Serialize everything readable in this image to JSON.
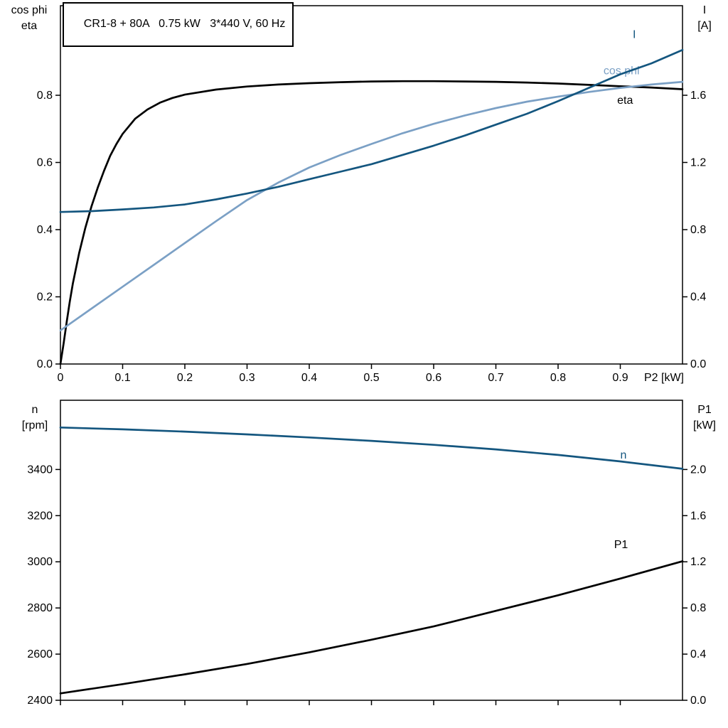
{
  "colors": {
    "black": "#000000",
    "dark_blue": "#14567F",
    "light_blue": "#7BA0C5"
  },
  "chart_data": [
    {
      "type": "line",
      "id": "top",
      "title": "CR1-8 + 80A   0.75 kW   3*440 V, 60 Hz",
      "x_axis": {
        "lim": [
          0,
          1.0
        ],
        "ticks": [
          0,
          0.1,
          0.2,
          0.3,
          0.4,
          0.5,
          0.6,
          0.7,
          0.8,
          0.9
        ],
        "tick_labels": [
          "0",
          "0.1",
          "0.2",
          "0.3",
          "0.4",
          "0.5",
          "0.6",
          "0.7",
          "0.8",
          "0.9"
        ],
        "end_label": "P2 [kW]"
      },
      "left_axis": {
        "label_lines": [
          "cos phi",
          "eta"
        ],
        "lim": [
          0,
          1.0667
        ],
        "ticks": [
          0,
          0.2,
          0.4,
          0.6,
          0.8
        ],
        "tick_labels": [
          "0.0",
          "0.2",
          "0.4",
          "0.6",
          "0.8"
        ]
      },
      "right_axis": {
        "label_lines": [
          "I",
          "[A]"
        ],
        "lim": [
          0,
          2.1333
        ],
        "ticks": [
          0,
          0.4,
          0.8,
          1.2,
          1.6
        ],
        "tick_labels": [
          "0.0",
          "0.4",
          "0.8",
          "1.2",
          "1.6"
        ]
      },
      "series": [
        {
          "name": "eta",
          "label": "eta",
          "axis": "left",
          "color_key": "black",
          "label_pos": [
            0.895,
            0.775
          ],
          "points": [
            [
              0,
              0
            ],
            [
              0.005,
              0.06
            ],
            [
              0.01,
              0.125
            ],
            [
              0.015,
              0.185
            ],
            [
              0.02,
              0.24
            ],
            [
              0.03,
              0.33
            ],
            [
              0.04,
              0.405
            ],
            [
              0.05,
              0.47
            ],
            [
              0.06,
              0.525
            ],
            [
              0.07,
              0.575
            ],
            [
              0.08,
              0.62
            ],
            [
              0.09,
              0.655
            ],
            [
              0.1,
              0.685
            ],
            [
              0.12,
              0.73
            ],
            [
              0.14,
              0.758
            ],
            [
              0.16,
              0.778
            ],
            [
              0.18,
              0.792
            ],
            [
              0.2,
              0.802
            ],
            [
              0.25,
              0.817
            ],
            [
              0.3,
              0.826
            ],
            [
              0.35,
              0.832
            ],
            [
              0.4,
              0.836
            ],
            [
              0.45,
              0.839
            ],
            [
              0.5,
              0.841
            ],
            [
              0.55,
              0.842
            ],
            [
              0.6,
              0.842
            ],
            [
              0.65,
              0.841
            ],
            [
              0.7,
              0.84
            ],
            [
              0.75,
              0.838
            ],
            [
              0.8,
              0.835
            ],
            [
              0.85,
              0.831
            ],
            [
              0.9,
              0.827
            ],
            [
              0.95,
              0.823
            ],
            [
              1,
              0.818
            ]
          ]
        },
        {
          "name": "cos-phi",
          "label": "cos phi",
          "axis": "left",
          "color_key": "light_blue",
          "label_pos": [
            0.873,
            0.862
          ],
          "points": [
            [
              0,
              0.1
            ],
            [
              0.05,
              0.165
            ],
            [
              0.1,
              0.23
            ],
            [
              0.15,
              0.295
            ],
            [
              0.2,
              0.36
            ],
            [
              0.25,
              0.425
            ],
            [
              0.3,
              0.488
            ],
            [
              0.35,
              0.54
            ],
            [
              0.4,
              0.585
            ],
            [
              0.45,
              0.622
            ],
            [
              0.5,
              0.655
            ],
            [
              0.55,
              0.687
            ],
            [
              0.6,
              0.715
            ],
            [
              0.65,
              0.74
            ],
            [
              0.7,
              0.762
            ],
            [
              0.75,
              0.781
            ],
            [
              0.8,
              0.796
            ],
            [
              0.85,
              0.81
            ],
            [
              0.9,
              0.822
            ],
            [
              0.95,
              0.832
            ],
            [
              1,
              0.84
            ]
          ]
        },
        {
          "name": "current",
          "label": "I",
          "axis": "right",
          "color_key": "dark_blue",
          "label_pos": [
            0.92,
            1.94
          ],
          "points": [
            [
              0,
              0.905
            ],
            [
              0.05,
              0.91
            ],
            [
              0.1,
              0.92
            ],
            [
              0.15,
              0.932
            ],
            [
              0.2,
              0.95
            ],
            [
              0.25,
              0.98
            ],
            [
              0.3,
              1.015
            ],
            [
              0.35,
              1.055
            ],
            [
              0.4,
              1.1
            ],
            [
              0.45,
              1.145
            ],
            [
              0.5,
              1.19
            ],
            [
              0.55,
              1.245
            ],
            [
              0.6,
              1.3
            ],
            [
              0.65,
              1.36
            ],
            [
              0.7,
              1.425
            ],
            [
              0.75,
              1.49
            ],
            [
              0.8,
              1.565
            ],
            [
              0.85,
              1.645
            ],
            [
              0.9,
              1.725
            ],
            [
              0.95,
              1.79
            ],
            [
              1,
              1.87
            ]
          ]
        }
      ]
    },
    {
      "type": "line",
      "id": "bottom",
      "title": "",
      "x_axis": {
        "lim": [
          0,
          1.0
        ],
        "ticks": [
          0,
          0.1,
          0.2,
          0.3,
          0.4,
          0.5,
          0.6,
          0.7,
          0.8,
          0.9
        ],
        "tick_labels": [
          "",
          "",
          "",
          "",
          "",
          "",
          "",
          "",
          "",
          ""
        ],
        "end_label": ""
      },
      "left_axis": {
        "label_lines": [
          "n",
          "[rpm]"
        ],
        "lim": [
          2400,
          3700
        ],
        "ticks": [
          2400,
          2600,
          2800,
          3000,
          3200,
          3400
        ],
        "tick_labels": [
          "2400",
          "2600",
          "2800",
          "3000",
          "3200",
          "3400"
        ]
      },
      "right_axis": {
        "label_lines": [
          "P1",
          "[kW]"
        ],
        "lim": [
          0,
          2.6
        ],
        "ticks": [
          0,
          0.4,
          0.8,
          1.2,
          1.6,
          2.0
        ],
        "tick_labels": [
          "0.0",
          "0.4",
          "0.8",
          "1.2",
          "1.6",
          "2.0"
        ]
      },
      "series": [
        {
          "name": "speed",
          "label": "n",
          "axis": "left",
          "color_key": "dark_blue",
          "label_pos": [
            0.9,
            3448
          ],
          "points": [
            [
              0,
              3582
            ],
            [
              0.1,
              3574
            ],
            [
              0.2,
              3564
            ],
            [
              0.3,
              3552
            ],
            [
              0.4,
              3539
            ],
            [
              0.5,
              3524
            ],
            [
              0.6,
              3507
            ],
            [
              0.7,
              3487
            ],
            [
              0.8,
              3463
            ],
            [
              0.9,
              3435
            ],
            [
              1,
              3403
            ]
          ]
        },
        {
          "name": "p1",
          "label": "P1",
          "axis": "right",
          "color_key": "black",
          "label_pos": [
            0.89,
            1.32
          ],
          "points": [
            [
              0,
              0.06
            ],
            [
              0.1,
              0.14
            ],
            [
              0.2,
              0.225
            ],
            [
              0.3,
              0.315
            ],
            [
              0.4,
              0.415
            ],
            [
              0.5,
              0.525
            ],
            [
              0.6,
              0.64
            ],
            [
              0.7,
              0.775
            ],
            [
              0.8,
              0.91
            ],
            [
              0.9,
              1.055
            ],
            [
              1,
              1.205
            ]
          ]
        }
      ]
    }
  ]
}
